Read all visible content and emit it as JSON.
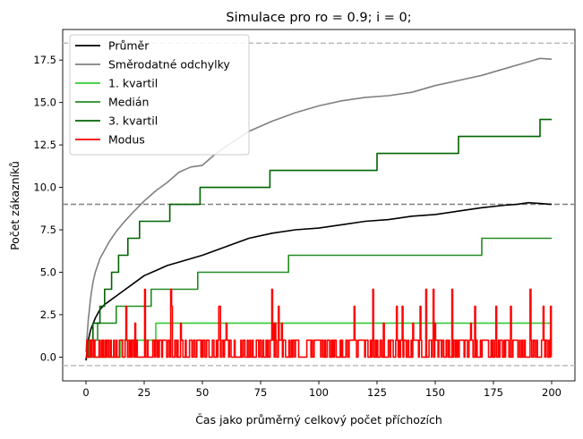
{
  "chart_data": {
    "type": "line",
    "title": "Simulace pro ro = 0.9; i = 0;",
    "xlabel": "Čas jako průměrný celkový počet příchozích",
    "ylabel": "Počet zákazníků",
    "xlim": [
      -10,
      210
    ],
    "ylim": [
      -1.4,
      19.3
    ],
    "x_ticks": [
      0,
      25,
      50,
      75,
      100,
      125,
      150,
      175,
      200
    ],
    "y_ticks": [
      0.0,
      2.5,
      5.0,
      7.5,
      10.0,
      12.5,
      15.0,
      17.5
    ],
    "x_tick_labels": [
      "0",
      "25",
      "50",
      "75",
      "100",
      "125",
      "150",
      "175",
      "200"
    ],
    "y_tick_labels": [
      "0.0",
      "2.5",
      "5.0",
      "7.5",
      "10.0",
      "12.5",
      "15.0",
      "17.5"
    ],
    "legend_position": "upper-left",
    "reference_lines": [
      {
        "y": 18.5,
        "color": "#bbbbbb",
        "style": "dashed"
      },
      {
        "y": 9.0,
        "color": "#808080",
        "style": "dashed"
      },
      {
        "y": -0.5,
        "color": "#bbbbbb",
        "style": "dashed"
      }
    ],
    "series": [
      {
        "name": "Průměr",
        "color": "#000000",
        "x": [
          0,
          1,
          2,
          4,
          6,
          8,
          10,
          13,
          16,
          20,
          25,
          30,
          35,
          40,
          50,
          60,
          70,
          80,
          90,
          100,
          110,
          120,
          130,
          140,
          150,
          160,
          170,
          180,
          185,
          190,
          195,
          200
        ],
        "y": [
          -0.2,
          1.0,
          1.6,
          2.3,
          2.8,
          3.1,
          3.3,
          3.6,
          3.9,
          4.3,
          4.8,
          5.1,
          5.4,
          5.6,
          6.0,
          6.5,
          7.0,
          7.3,
          7.5,
          7.6,
          7.8,
          8.0,
          8.1,
          8.3,
          8.4,
          8.6,
          8.8,
          8.95,
          9.0,
          9.1,
          9.05,
          9.0
        ]
      },
      {
        "name": "Směrodatné odchylky",
        "color": "#808080",
        "x": [
          0,
          1,
          2,
          3,
          4,
          6,
          8,
          10,
          13,
          16,
          20,
          25,
          30,
          35,
          40,
          45,
          50,
          55,
          60,
          70,
          80,
          90,
          100,
          110,
          120,
          130,
          140,
          150,
          160,
          170,
          180,
          190,
          195,
          200
        ],
        "y": [
          0.3,
          2.2,
          3.5,
          4.4,
          5.0,
          5.8,
          6.3,
          6.8,
          7.4,
          7.9,
          8.5,
          9.2,
          9.8,
          10.3,
          10.9,
          11.2,
          11.3,
          11.9,
          12.4,
          13.3,
          13.9,
          14.4,
          14.8,
          15.1,
          15.3,
          15.4,
          15.6,
          16.0,
          16.3,
          16.6,
          17.0,
          17.4,
          17.6,
          17.55
        ]
      },
      {
        "name": "1. kvartil",
        "color": "#32cd32",
        "x": [
          0,
          15,
          15,
          30,
          30,
          200
        ],
        "y": [
          0,
          0,
          1,
          1,
          2,
          2
        ]
      },
      {
        "name": "Medián",
        "color": "#228b22",
        "x": [
          0,
          1,
          1,
          5,
          5,
          13,
          13,
          28,
          28,
          48,
          48,
          57,
          57,
          87,
          87,
          127,
          127,
          170,
          170,
          200
        ],
        "y": [
          0,
          0,
          1,
          1,
          2,
          2,
          3,
          3,
          4,
          4,
          5,
          5,
          5,
          5,
          6,
          6,
          6,
          6,
          7,
          7
        ]
      },
      {
        "name": "3. kvartil",
        "color": "#006400",
        "x": [
          0,
          1,
          1,
          3,
          3,
          6,
          6,
          8,
          8,
          11,
          11,
          14,
          14,
          18,
          18,
          23,
          23,
          30,
          30,
          36,
          36,
          49,
          49,
          61,
          61,
          79,
          79,
          99,
          99,
          125,
          125,
          160,
          160,
          195,
          195,
          200
        ],
        "y": [
          0,
          0,
          1,
          1,
          2,
          2,
          3,
          3,
          4,
          4,
          5,
          5,
          6,
          6,
          7,
          7,
          8,
          8,
          8,
          8,
          9,
          9,
          10,
          10,
          10,
          10,
          11,
          11,
          11,
          11,
          12,
          12,
          13,
          13,
          14,
          14
        ]
      },
      {
        "name": "Modus",
        "color": "#ff0000",
        "x": [
          0,
          200
        ],
        "y": [
          0,
          1
        ]
      }
    ]
  }
}
